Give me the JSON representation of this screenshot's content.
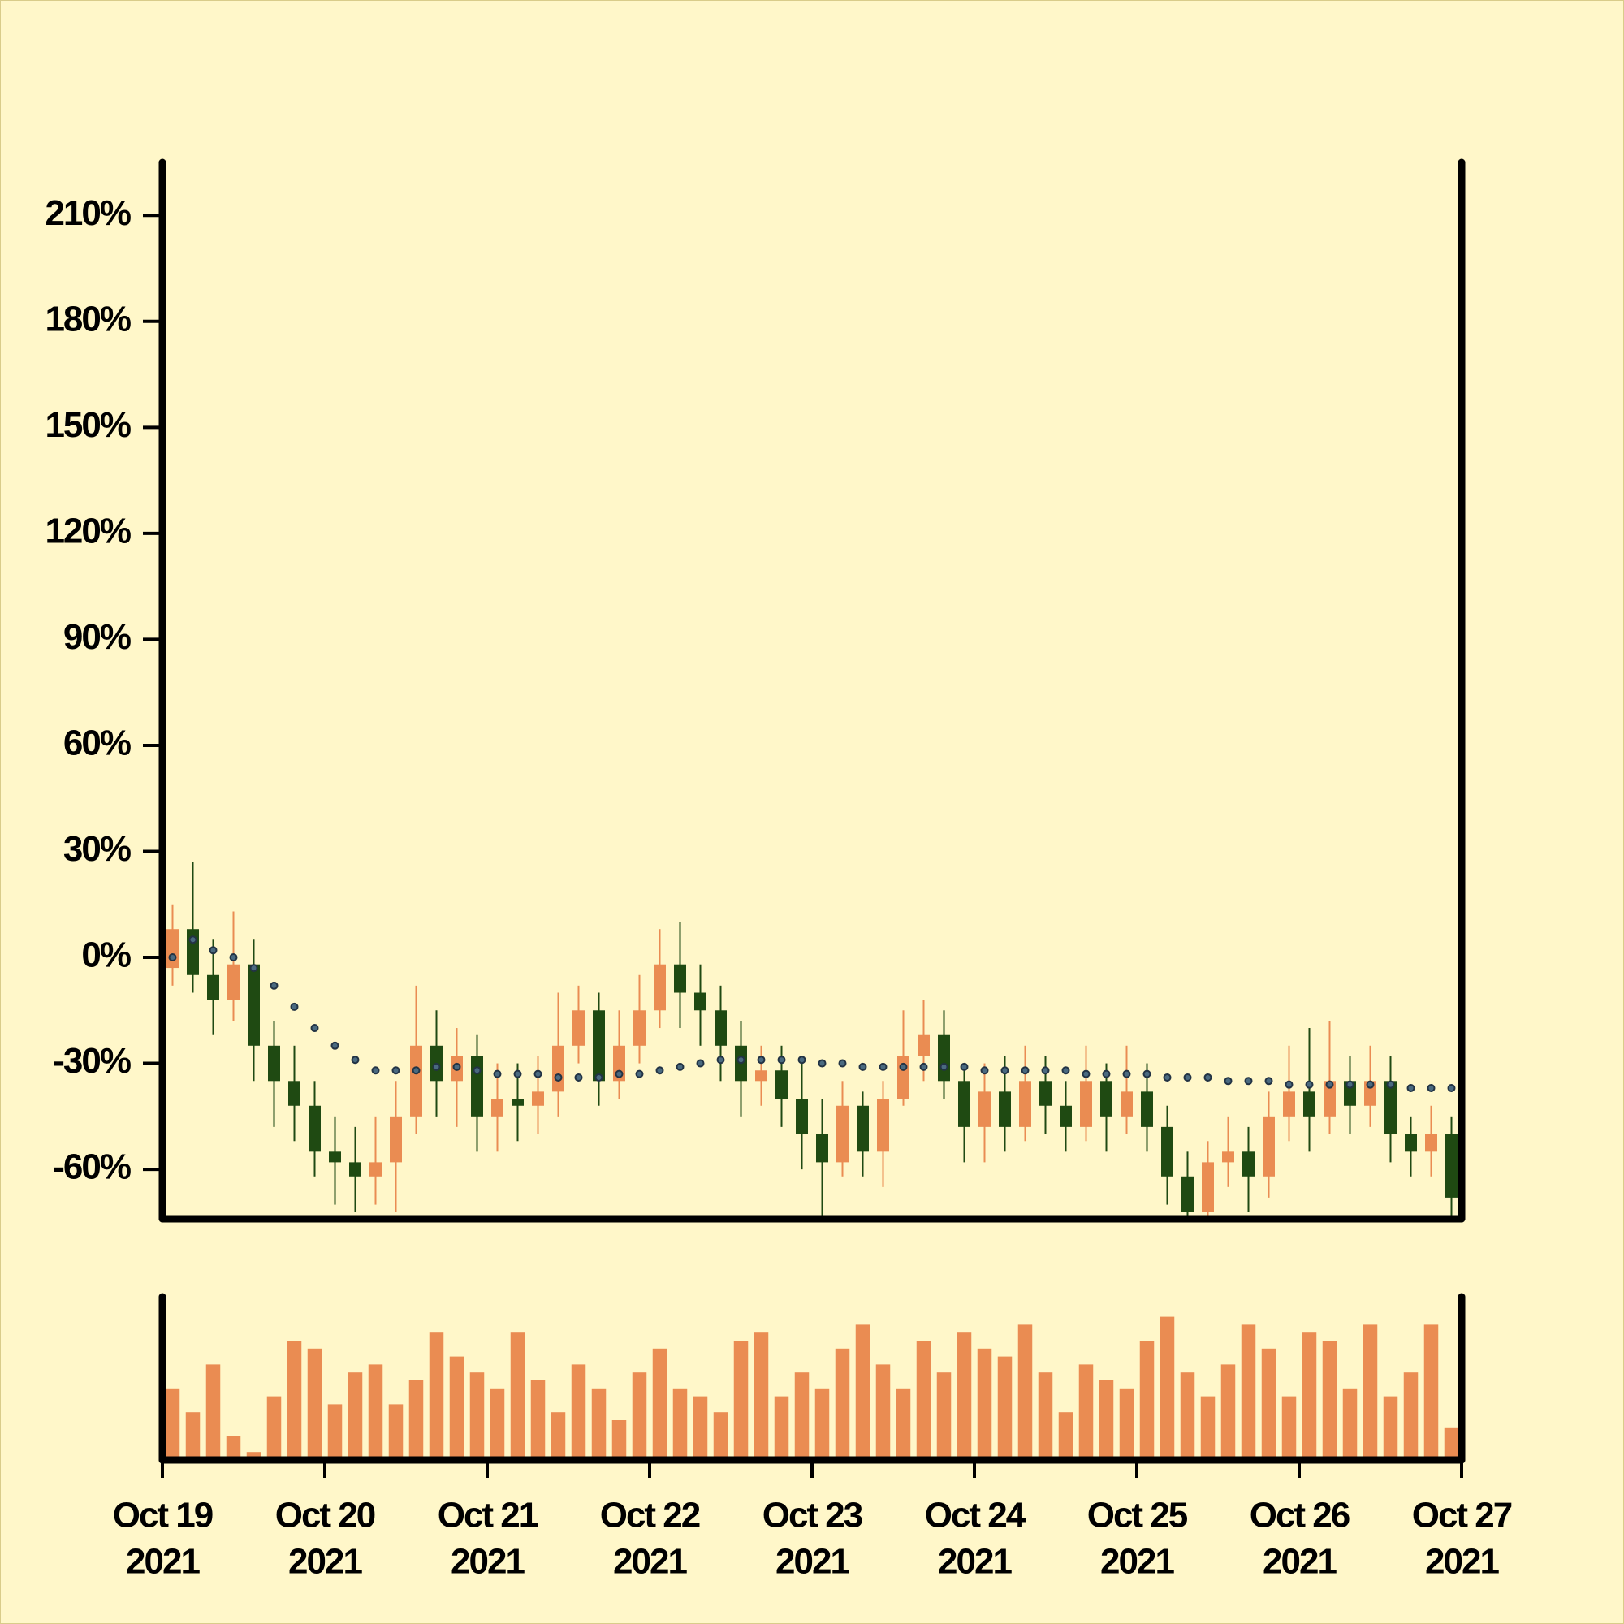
{
  "chart_data": {
    "type": "candlestick",
    "x": [
      "2021-10-19T01:30",
      "2021-10-19T04:30",
      "2021-10-19T07:30",
      "2021-10-19T10:30",
      "2021-10-19T13:30",
      "2021-10-19T16:30",
      "2021-10-19T19:30",
      "2021-10-19T22:30",
      "2021-10-20T01:30",
      "2021-10-20T04:30",
      "2021-10-20T07:30",
      "2021-10-20T10:30",
      "2021-10-20T13:30",
      "2021-10-20T16:30",
      "2021-10-20T19:30",
      "2021-10-20T22:30",
      "2021-10-21T01:30",
      "2021-10-21T04:30",
      "2021-10-21T07:30",
      "2021-10-21T10:30",
      "2021-10-21T13:30",
      "2021-10-21T16:30",
      "2021-10-21T19:30",
      "2021-10-21T22:30",
      "2021-10-22T01:30",
      "2021-10-22T04:30",
      "2021-10-22T07:30",
      "2021-10-22T10:30",
      "2021-10-22T13:30",
      "2021-10-22T16:30",
      "2021-10-22T19:30",
      "2021-10-22T22:30",
      "2021-10-23T01:30",
      "2021-10-23T04:30",
      "2021-10-23T07:30",
      "2021-10-23T10:30",
      "2021-10-23T13:30",
      "2021-10-23T16:30",
      "2021-10-23T19:30",
      "2021-10-23T22:30",
      "2021-10-24T01:30",
      "2021-10-24T04:30",
      "2021-10-24T07:30",
      "2021-10-24T10:30",
      "2021-10-24T13:30",
      "2021-10-24T16:30",
      "2021-10-24T19:30",
      "2021-10-24T22:30",
      "2021-10-25T01:30",
      "2021-10-25T04:30",
      "2021-10-25T07:30",
      "2021-10-25T10:30",
      "2021-10-25T13:30",
      "2021-10-25T16:30",
      "2021-10-25T19:30",
      "2021-10-25T22:30",
      "2021-10-26T01:30",
      "2021-10-26T04:30",
      "2021-10-26T07:30",
      "2021-10-26T10:30",
      "2021-10-26T13:30",
      "2021-10-26T16:30",
      "2021-10-26T19:30",
      "2021-10-26T22:30"
    ],
    "open": [
      -3,
      8,
      -5,
      -12,
      -2,
      -25,
      -35,
      -42,
      -55,
      -58,
      -62,
      -58,
      -45,
      -25,
      -35,
      -28,
      -45,
      -40,
      -42,
      -38,
      -25,
      -15,
      -35,
      -25,
      -15,
      -2,
      -10,
      -15,
      -25,
      -35,
      -32,
      -40,
      -50,
      -58,
      -42,
      -55,
      -40,
      -28,
      -22,
      -35,
      -48,
      -38,
      -48,
      -35,
      -42,
      -48,
      -35,
      -45,
      -38,
      -48,
      -62,
      -72,
      -58,
      -55,
      -62,
      -45,
      -38,
      -45,
      -35,
      -42,
      -35,
      -50,
      -55,
      -50
    ],
    "high": [
      15,
      27,
      5,
      13,
      5,
      -18,
      -25,
      -35,
      -45,
      -48,
      -45,
      -35,
      -8,
      -15,
      -20,
      -22,
      -30,
      -30,
      -28,
      -10,
      -8,
      -10,
      -15,
      -5,
      8,
      10,
      -2,
      -8,
      -18,
      -25,
      -25,
      -30,
      -40,
      -35,
      -38,
      -35,
      -15,
      -12,
      -15,
      -30,
      -30,
      -28,
      -25,
      -28,
      -35,
      -25,
      -30,
      -25,
      -30,
      -42,
      -55,
      -52,
      -45,
      -48,
      -38,
      -25,
      -20,
      -18,
      -28,
      -25,
      -28,
      -45,
      -42,
      -45
    ],
    "low": [
      -8,
      -10,
      -22,
      -18,
      -35,
      -48,
      -52,
      -62,
      -70,
      -72,
      -70,
      -72,
      -50,
      -45,
      -48,
      -55,
      -55,
      -52,
      -50,
      -45,
      -30,
      -42,
      -40,
      -30,
      -20,
      -20,
      -25,
      -35,
      -45,
      -42,
      -48,
      -60,
      -74,
      -62,
      -62,
      -65,
      -42,
      -35,
      -40,
      -58,
      -58,
      -55,
      -52,
      -50,
      -55,
      -52,
      -55,
      -50,
      -55,
      -70,
      -74,
      -74,
      -65,
      -72,
      -68,
      -52,
      -55,
      -50,
      -50,
      -48,
      -58,
      -62,
      -62,
      -74
    ],
    "close": [
      8,
      -5,
      -12,
      -2,
      -25,
      -35,
      -42,
      -55,
      -58,
      -62,
      -58,
      -45,
      -25,
      -35,
      -28,
      -45,
      -40,
      -42,
      -38,
      -25,
      -15,
      -35,
      -25,
      -15,
      -2,
      -10,
      -15,
      -25,
      -35,
      -32,
      -40,
      -50,
      -58,
      -42,
      -55,
      -40,
      -28,
      -22,
      -35,
      -48,
      -38,
      -48,
      -35,
      -42,
      -48,
      -35,
      -45,
      -38,
      -48,
      -62,
      -72,
      -58,
      -55,
      -62,
      -45,
      -38,
      -45,
      -35,
      -42,
      -35,
      -50,
      -55,
      -50,
      -68
    ],
    "up_color": "#ea8c52",
    "down_color": "#1f4a12",
    "ma": {
      "color": "#223344",
      "values": [
        0,
        5,
        2,
        0,
        -3,
        -8,
        -14,
        -20,
        -25,
        -29,
        -32,
        -32,
        -32,
        -31,
        -31,
        -32,
        -33,
        -33,
        -33,
        -34,
        -34,
        -34,
        -33,
        -33,
        -32,
        -31,
        -30,
        -29,
        -29,
        -29,
        -29,
        -29,
        -30,
        -30,
        -31,
        -31,
        -31,
        -31,
        -31,
        -31,
        -32,
        -32,
        -32,
        -32,
        -32,
        -33,
        -33,
        -33,
        -33,
        -34,
        -34,
        -34,
        -35,
        -35,
        -35,
        -36,
        -36,
        -36,
        -36,
        -36,
        -36,
        -37,
        -37,
        -37
      ]
    },
    "volume": {
      "color": "#ea8c52",
      "ylim": [
        0,
        100
      ],
      "values": [
        45,
        30,
        60,
        15,
        5,
        40,
        75,
        70,
        35,
        55,
        60,
        35,
        50,
        80,
        65,
        55,
        45,
        80,
        50,
        30,
        60,
        45,
        25,
        55,
        70,
        45,
        40,
        30,
        75,
        80,
        40,
        55,
        45,
        70,
        85,
        60,
        45,
        75,
        55,
        80,
        70,
        65,
        85,
        55,
        30,
        60,
        50,
        45,
        75,
        90,
        55,
        40,
        60,
        85,
        70,
        40,
        80,
        75,
        45,
        85,
        40,
        55,
        85,
        20
      ]
    },
    "xlim": [
      "2021-10-19T00:00",
      "2021-10-27T00:00"
    ],
    "xticks": [
      {
        "value": "2021-10-19T00:00",
        "label": [
          "Oct 19",
          "2021"
        ]
      },
      {
        "value": "2021-10-20T00:00",
        "label": [
          "Oct 20",
          "2021"
        ]
      },
      {
        "value": "2021-10-21T00:00",
        "label": [
          "Oct 21",
          "2021"
        ]
      },
      {
        "value": "2021-10-22T00:00",
        "label": [
          "Oct 22",
          "2021"
        ]
      },
      {
        "value": "2021-10-23T00:00",
        "label": [
          "Oct 23",
          "2021"
        ]
      },
      {
        "value": "2021-10-24T00:00",
        "label": [
          "Oct 24",
          "2021"
        ]
      },
      {
        "value": "2021-10-25T00:00",
        "label": [
          "Oct 25",
          "2021"
        ]
      },
      {
        "value": "2021-10-26T00:00",
        "label": [
          "Oct 26",
          "2021"
        ]
      },
      {
        "value": "2021-10-27T00:00",
        "label": [
          "Oct 27",
          "2021"
        ]
      }
    ],
    "ylim": [
      -74,
      225
    ],
    "yticks": [
      {
        "value": -60,
        "label": "-60%"
      },
      {
        "value": -30,
        "label": "-30%"
      },
      {
        "value": 0,
        "label": "0%"
      },
      {
        "value": 30,
        "label": "30%"
      },
      {
        "value": 60,
        "label": "60%"
      },
      {
        "value": 90,
        "label": "90%"
      },
      {
        "value": 120,
        "label": "120%"
      },
      {
        "value": 150,
        "label": "150%"
      },
      {
        "value": 180,
        "label": "180%"
      },
      {
        "value": 210,
        "label": "210%"
      }
    ]
  }
}
